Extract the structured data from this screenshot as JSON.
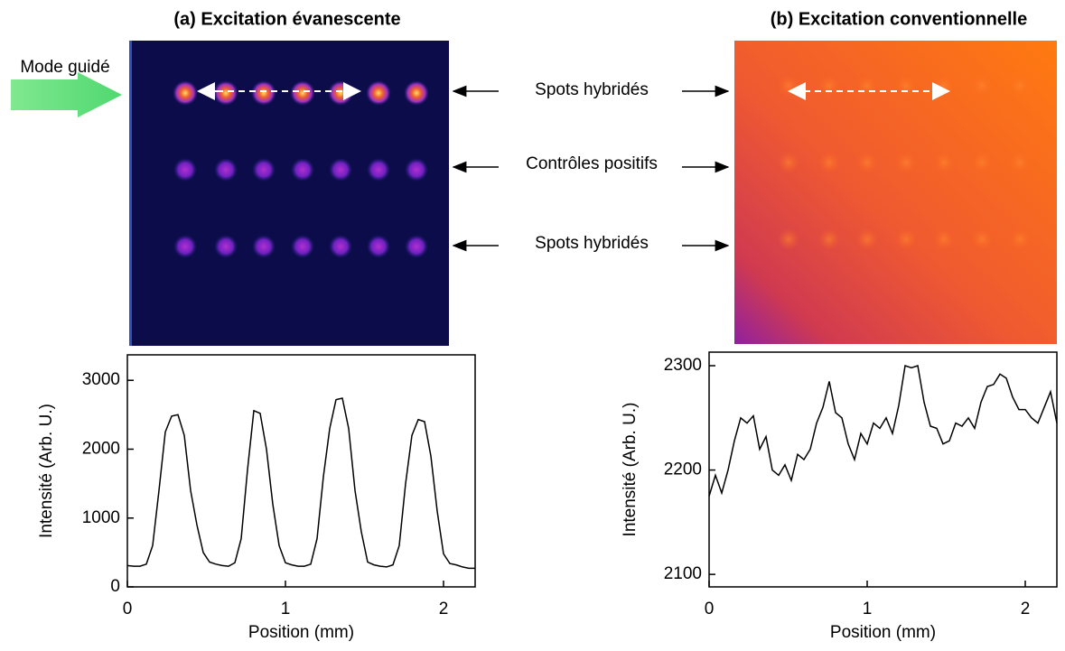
{
  "chart_data": [
    {
      "type": "line",
      "title": "(a) Excitation évanescente",
      "xlabel": "Position (mm)",
      "ylabel": "Intensité (Arb. U.)",
      "annotations": [
        "Mode guidé",
        "Spots hybridés",
        "Contrôles positifs",
        "Spots hybridés"
      ],
      "xlim": [
        0,
        2.2
      ],
      "xticks": [
        0,
        1,
        2
      ],
      "ylim": [
        0,
        3370
      ],
      "yticks": [
        0,
        1000,
        2000,
        3000
      ],
      "x": [
        0,
        0.04,
        0.08,
        0.12,
        0.16,
        0.2,
        0.24,
        0.28,
        0.32,
        0.36,
        0.4,
        0.44,
        0.48,
        0.52,
        0.56,
        0.6,
        0.64,
        0.68,
        0.72,
        0.76,
        0.8,
        0.84,
        0.88,
        0.92,
        0.96,
        1.0,
        1.04,
        1.08,
        1.12,
        1.16,
        1.2,
        1.24,
        1.28,
        1.32,
        1.36,
        1.4,
        1.44,
        1.48,
        1.52,
        1.56,
        1.6,
        1.64,
        1.68,
        1.72,
        1.76,
        1.8,
        1.84,
        1.88,
        1.92,
        1.96,
        2.0,
        2.04,
        2.08,
        2.12,
        2.16,
        2.2
      ],
      "series": [
        {
          "color": "#000000",
          "values": [
            310,
            300,
            300,
            330,
            600,
            1400,
            2250,
            2480,
            2500,
            2200,
            1400,
            900,
            500,
            360,
            330,
            310,
            300,
            350,
            700,
            1700,
            2560,
            2520,
            2000,
            1200,
            600,
            350,
            320,
            300,
            300,
            330,
            700,
            1600,
            2300,
            2720,
            2740,
            2300,
            1400,
            800,
            360,
            320,
            300,
            290,
            320,
            600,
            1500,
            2200,
            2430,
            2400,
            1900,
            1100,
            480,
            340,
            320,
            290,
            270,
            270
          ]
        }
      ]
    },
    {
      "type": "line",
      "title": "(b) Excitation conventionnelle",
      "xlabel": "Position (mm)",
      "ylabel": "Intensité (Arb. U.)",
      "xlim": [
        0,
        2.2
      ],
      "xticks": [
        0,
        1,
        2
      ],
      "ylim": [
        2088,
        2313
      ],
      "yticks": [
        2100,
        2200,
        2300
      ],
      "x": [
        0,
        0.04,
        0.08,
        0.12,
        0.16,
        0.2,
        0.24,
        0.28,
        0.32,
        0.36,
        0.4,
        0.44,
        0.48,
        0.52,
        0.56,
        0.6,
        0.64,
        0.68,
        0.72,
        0.76,
        0.8,
        0.84,
        0.88,
        0.92,
        0.96,
        1.0,
        1.04,
        1.08,
        1.12,
        1.16,
        1.2,
        1.24,
        1.28,
        1.32,
        1.36,
        1.4,
        1.44,
        1.48,
        1.52,
        1.56,
        1.6,
        1.64,
        1.68,
        1.72,
        1.76,
        1.8,
        1.84,
        1.88,
        1.92,
        1.96,
        2.0,
        2.04,
        2.08,
        2.12,
        2.16,
        2.2
      ],
      "series": [
        {
          "color": "#000000",
          "values": [
            2175,
            2195,
            2178,
            2200,
            2228,
            2250,
            2245,
            2252,
            2220,
            2232,
            2200,
            2195,
            2205,
            2190,
            2215,
            2210,
            2220,
            2245,
            2260,
            2285,
            2255,
            2250,
            2225,
            2210,
            2235,
            2225,
            2245,
            2240,
            2250,
            2235,
            2262,
            2300,
            2298,
            2300,
            2265,
            2242,
            2240,
            2225,
            2228,
            2245,
            2242,
            2250,
            2240,
            2265,
            2280,
            2282,
            2292,
            2288,
            2270,
            2258,
            2258,
            2250,
            2245,
            2260,
            2275,
            2245
          ]
        }
      ]
    }
  ]
}
